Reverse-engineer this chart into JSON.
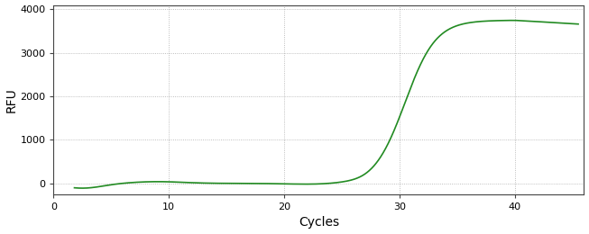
{
  "title": "",
  "xlabel": "Cycles",
  "ylabel": "RFU",
  "line_color": "#228B22",
  "line_width": 1.2,
  "background_color": "#ffffff",
  "plot_bg_color": "#ffffff",
  "xlim": [
    0,
    46
  ],
  "ylim": [
    -250,
    4100
  ],
  "xticks": [
    0,
    10,
    20,
    30,
    40
  ],
  "yticks": [
    0,
    1000,
    2000,
    3000,
    4000
  ],
  "grid_color": "#888888",
  "x_start": 1.8,
  "x_end": 45.5,
  "sigmoid_L": 3750,
  "sigmoid_k": 0.75,
  "sigmoid_x0": 30.5
}
